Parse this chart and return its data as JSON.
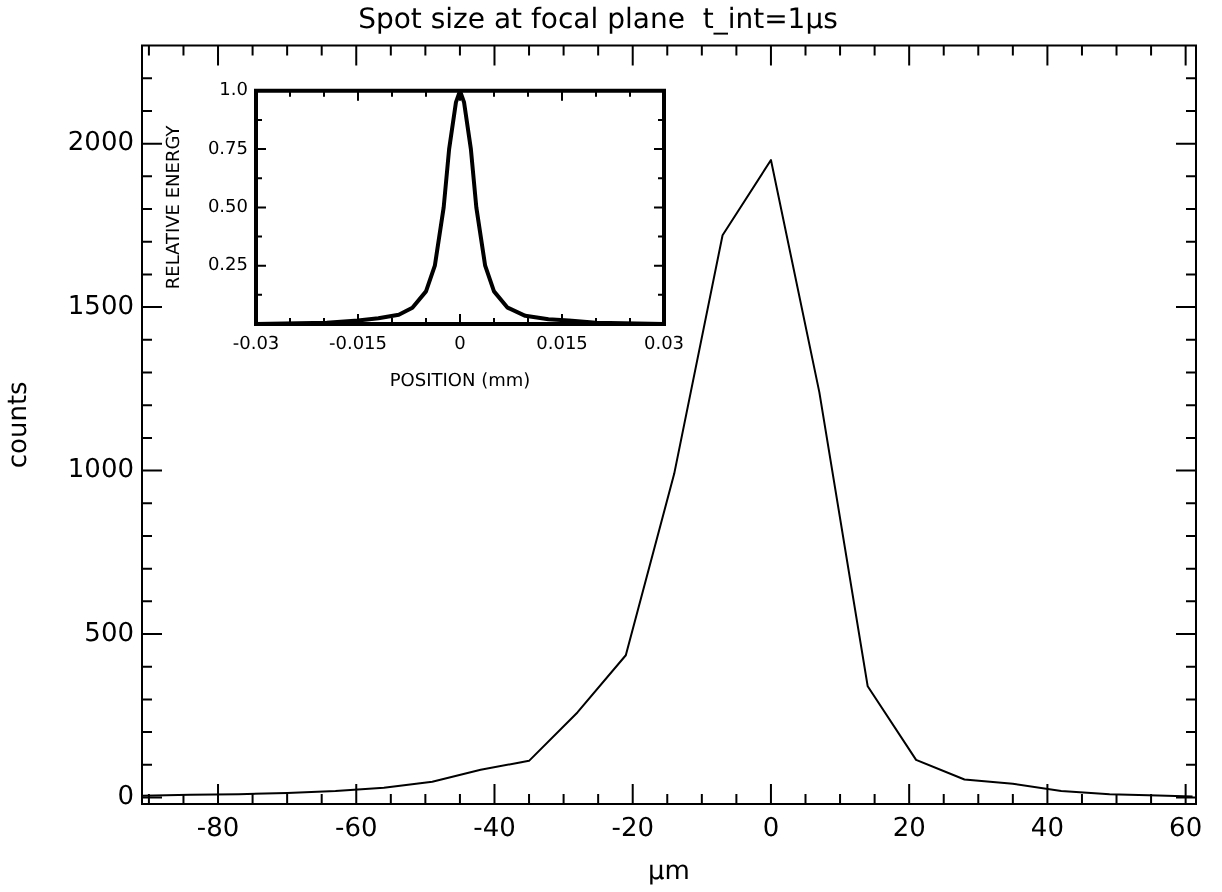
{
  "chart_data": [
    {
      "type": "line",
      "title": "Spot size at focal plane  t_int=1μs",
      "xlabel": "μm",
      "ylabel": "counts",
      "x": [
        -91,
        -84,
        -77,
        -70,
        -63,
        -56,
        -49,
        -42,
        -35,
        -28,
        -21,
        -14,
        -7,
        0,
        7,
        14,
        21,
        28,
        35,
        42,
        49,
        56,
        61
      ],
      "series": [
        {
          "color": "#000000",
          "values": [
            5,
            8,
            10,
            14,
            20,
            30,
            48,
            85,
            112,
            260,
            435,
            990,
            1720,
            1950,
            1240,
            340,
            115,
            55,
            42,
            20,
            10,
            6,
            3
          ]
        }
      ],
      "xlim": [
        -91,
        61.5
      ],
      "xticks": [
        {
          "value": -90,
          "label": null
        },
        {
          "value": -85,
          "label": null
        },
        -80,
        {
          "value": -75,
          "label": null
        },
        {
          "value": -70,
          "label": null
        },
        {
          "value": -65,
          "label": null
        },
        -60,
        {
          "value": -55,
          "label": null
        },
        {
          "value": -50,
          "label": null
        },
        {
          "value": -45,
          "label": null
        },
        -40,
        {
          "value": -35,
          "label": null
        },
        {
          "value": -30,
          "label": null
        },
        {
          "value": -25,
          "label": null
        },
        -20,
        {
          "value": -15,
          "label": null
        },
        {
          "value": -10,
          "label": null
        },
        {
          "value": -5,
          "label": null
        },
        0,
        {
          "value": 5,
          "label": null
        },
        {
          "value": 10,
          "label": null
        },
        {
          "value": 15,
          "label": null
        },
        20,
        {
          "value": 25,
          "label": null
        },
        {
          "value": 30,
          "label": null
        },
        {
          "value": 35,
          "label": null
        },
        40,
        {
          "value": 45,
          "label": null
        },
        {
          "value": 50,
          "label": null
        },
        {
          "value": 55,
          "label": null
        },
        60
      ],
      "ylim": [
        -20,
        2300
      ],
      "yticks": [
        0,
        {
          "value": 100,
          "label": null
        },
        {
          "value": 200,
          "label": null
        },
        {
          "value": 300,
          "label": null
        },
        {
          "value": 400,
          "label": null
        },
        500,
        {
          "value": 600,
          "label": null
        },
        {
          "value": 700,
          "label": null
        },
        {
          "value": 800,
          "label": null
        },
        {
          "value": 900,
          "label": null
        },
        1000,
        {
          "value": 1100,
          "label": null
        },
        {
          "value": 1200,
          "label": null
        },
        {
          "value": 1300,
          "label": null
        },
        {
          "value": 1400,
          "label": null
        },
        1500,
        {
          "value": 1600,
          "label": null
        },
        {
          "value": 1700,
          "label": null
        },
        {
          "value": 1800,
          "label": null
        },
        {
          "value": 1900,
          "label": null
        },
        2000,
        {
          "value": 2100,
          "label": null
        },
        {
          "value": 2200,
          "label": null
        }
      ],
      "grid": false,
      "legend": false,
      "marker": "none",
      "line_style": "solid"
    },
    {
      "type": "line",
      "xlabel": "POSITION (mm)",
      "ylabel": "RELATIVE ENERGY",
      "x": [
        -0.03,
        -0.0196,
        -0.015,
        -0.012,
        -0.009,
        -0.007,
        -0.005,
        -0.0037,
        -0.0024,
        -0.0016,
        -0.0006,
        0,
        0.0006,
        0.0016,
        0.0024,
        0.0037,
        0.005,
        0.007,
        0.0096,
        0.013,
        0.016,
        0.02,
        0.03
      ],
      "series": [
        {
          "color": "#000000",
          "values": [
            0,
            0.005,
            0.015,
            0.025,
            0.04,
            0.07,
            0.14,
            0.25,
            0.5,
            0.75,
            0.95,
            1.0,
            0.95,
            0.75,
            0.5,
            0.25,
            0.14,
            0.07,
            0.035,
            0.02,
            0.015,
            0.005,
            0
          ]
        }
      ],
      "xlim": [
        -0.03,
        0.03
      ],
      "xticks": [
        -0.03,
        {
          "value": -0.025,
          "label": null
        },
        {
          "value": -0.02,
          "label": null
        },
        -0.015,
        {
          "value": -0.01,
          "label": null
        },
        {
          "value": -0.005,
          "label": null
        },
        0,
        {
          "value": 0.005,
          "label": null
        },
        {
          "value": 0.01,
          "label": null
        },
        0.015,
        {
          "value": 0.02,
          "label": null
        },
        {
          "value": 0.025,
          "label": null
        },
        0.03
      ],
      "ylim": [
        0,
        1
      ],
      "yticks": [
        {
          "value": 0.125,
          "label": null
        },
        0.25,
        {
          "value": 0.375,
          "label": null
        },
        {
          "value": 0.5,
          "label": "0.50"
        },
        {
          "value": 0.625,
          "label": null
        },
        0.75,
        {
          "value": 0.875,
          "label": null
        },
        {
          "value": 1,
          "label": "1.0"
        }
      ],
      "grid": false,
      "legend": false,
      "marker": "none",
      "line_style": "solid"
    }
  ]
}
